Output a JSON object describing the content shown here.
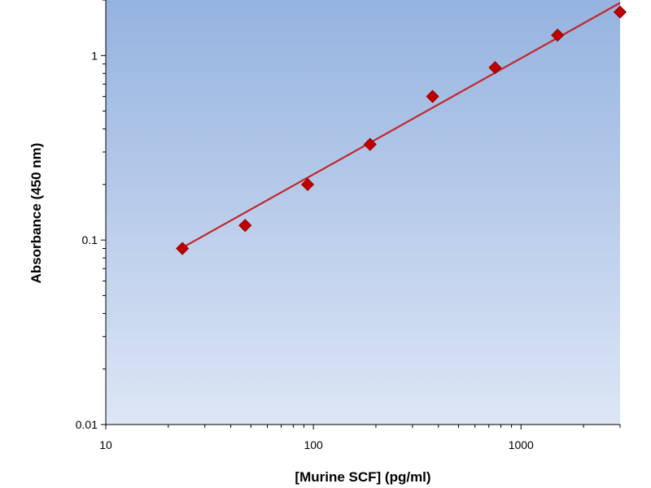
{
  "chart_data": {
    "type": "scatter",
    "title": "",
    "xlabel": "[Murine SCF] (pg/ml)",
    "ylabel": "Absorbance (450 nm)",
    "x_scale": "log",
    "y_scale": "log",
    "xlim": [
      10,
      3000
    ],
    "ylim": [
      0.01,
      2
    ],
    "x_ticks": [
      10,
      100,
      1000
    ],
    "x_tick_labels": [
      "10",
      "100",
      "1000"
    ],
    "y_ticks": [
      0.01,
      0.1,
      1
    ],
    "y_tick_labels": [
      "0.01",
      "0.1",
      "1"
    ],
    "grid": false,
    "legend": "none",
    "series": [
      {
        "marker": "diamond",
        "color": "#c00000",
        "x": [
          23.4,
          46.9,
          93.8,
          187.5,
          375,
          750,
          1500,
          3000
        ],
        "y": [
          0.09,
          0.12,
          0.2,
          0.33,
          0.6,
          0.86,
          1.29,
          1.72
        ]
      }
    ],
    "fit_line": {
      "color": "#c0272d",
      "x": [
        23.4,
        3000
      ],
      "y": [
        0.091,
        1.93
      ]
    },
    "plot_background": {
      "top_color": "#95b3e0",
      "bottom_color": "#dde6f5"
    }
  }
}
